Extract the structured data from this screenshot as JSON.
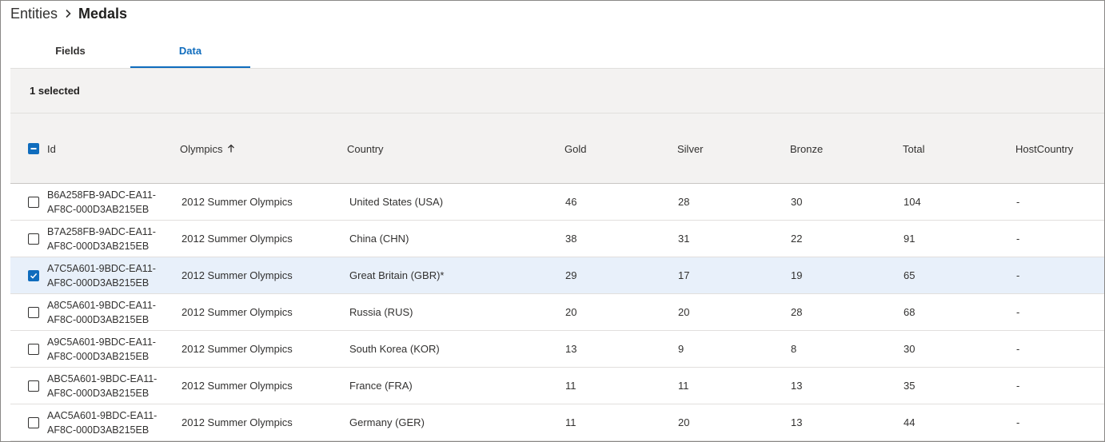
{
  "breadcrumb": {
    "parent": "Entities",
    "current": "Medals"
  },
  "tabs": [
    {
      "label": "Fields",
      "active": false
    },
    {
      "label": "Data",
      "active": true
    }
  ],
  "selection": {
    "text": "1 selected"
  },
  "columns": {
    "id": "Id",
    "olympics": "Olympics",
    "country": "Country",
    "gold": "Gold",
    "silver": "Silver",
    "bronze": "Bronze",
    "total": "Total",
    "host": "HostCountry"
  },
  "sort": {
    "column": "Olympics",
    "direction": "ascending",
    "icon": "arrow-up-icon"
  },
  "colors": {
    "accent": "#0f6cbd",
    "selected_row": "#e8f0fa",
    "header_bg": "#f3f2f1"
  },
  "rows": [
    {
      "id1": "B6A258FB-9ADC-EA11-",
      "id2": "AF8C-000D3AB215EB",
      "olympics": "2012 Summer Olympics",
      "country": "United States (USA)",
      "gold": "46",
      "silver": "28",
      "bronze": "30",
      "total": "104",
      "host": "-",
      "checked": false
    },
    {
      "id1": "B7A258FB-9ADC-EA11-",
      "id2": "AF8C-000D3AB215EB",
      "olympics": "2012 Summer Olympics",
      "country": "China (CHN)",
      "gold": "38",
      "silver": "31",
      "bronze": "22",
      "total": "91",
      "host": "-",
      "checked": false
    },
    {
      "id1": "A7C5A601-9BDC-EA11-",
      "id2": "AF8C-000D3AB215EB",
      "olympics": "2012 Summer Olympics",
      "country": "Great Britain (GBR)*",
      "gold": "29",
      "silver": "17",
      "bronze": "19",
      "total": "65",
      "host": "-",
      "checked": true
    },
    {
      "id1": "A8C5A601-9BDC-EA11-",
      "id2": "AF8C-000D3AB215EB",
      "olympics": "2012 Summer Olympics",
      "country": "Russia (RUS)",
      "gold": "20",
      "silver": "20",
      "bronze": "28",
      "total": "68",
      "host": "-",
      "checked": false
    },
    {
      "id1": "A9C5A601-9BDC-EA11-",
      "id2": "AF8C-000D3AB215EB",
      "olympics": "2012 Summer Olympics",
      "country": "South Korea (KOR)",
      "gold": "13",
      "silver": "9",
      "bronze": "8",
      "total": "30",
      "host": "-",
      "checked": false
    },
    {
      "id1": "ABC5A601-9BDC-EA11-",
      "id2": "AF8C-000D3AB215EB",
      "olympics": "2012 Summer Olympics",
      "country": "France (FRA)",
      "gold": "11",
      "silver": "11",
      "bronze": "13",
      "total": "35",
      "host": "-",
      "checked": false
    },
    {
      "id1": "AAC5A601-9BDC-EA11-",
      "id2": "AF8C-000D3AB215EB",
      "olympics": "2012 Summer Olympics",
      "country": "Germany (GER)",
      "gold": "11",
      "silver": "20",
      "bronze": "13",
      "total": "44",
      "host": "-",
      "checked": false
    }
  ]
}
